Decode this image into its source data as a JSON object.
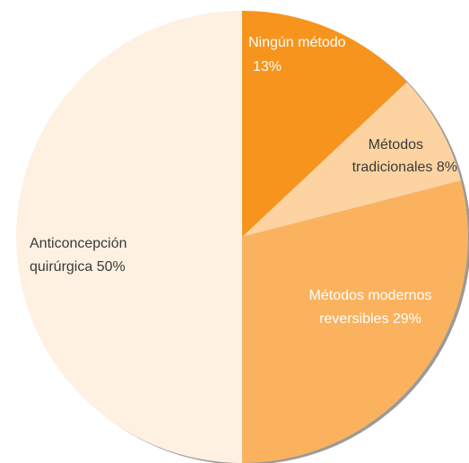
{
  "chart_data": {
    "type": "pie",
    "label_lines": [
      [
        "Ningún método",
        "13%"
      ],
      [
        "Métodos",
        "tradicionales 8%"
      ],
      [
        "Métodos modernos",
        "reversibles 29%"
      ],
      [
        "Anticoncepción",
        "quirúrgica 50%"
      ]
    ],
    "values": [
      13,
      8,
      29,
      50
    ],
    "colors": [
      "#f7941d",
      "#fdd3a2",
      "#fbb25e",
      "#fef1e2"
    ]
  }
}
